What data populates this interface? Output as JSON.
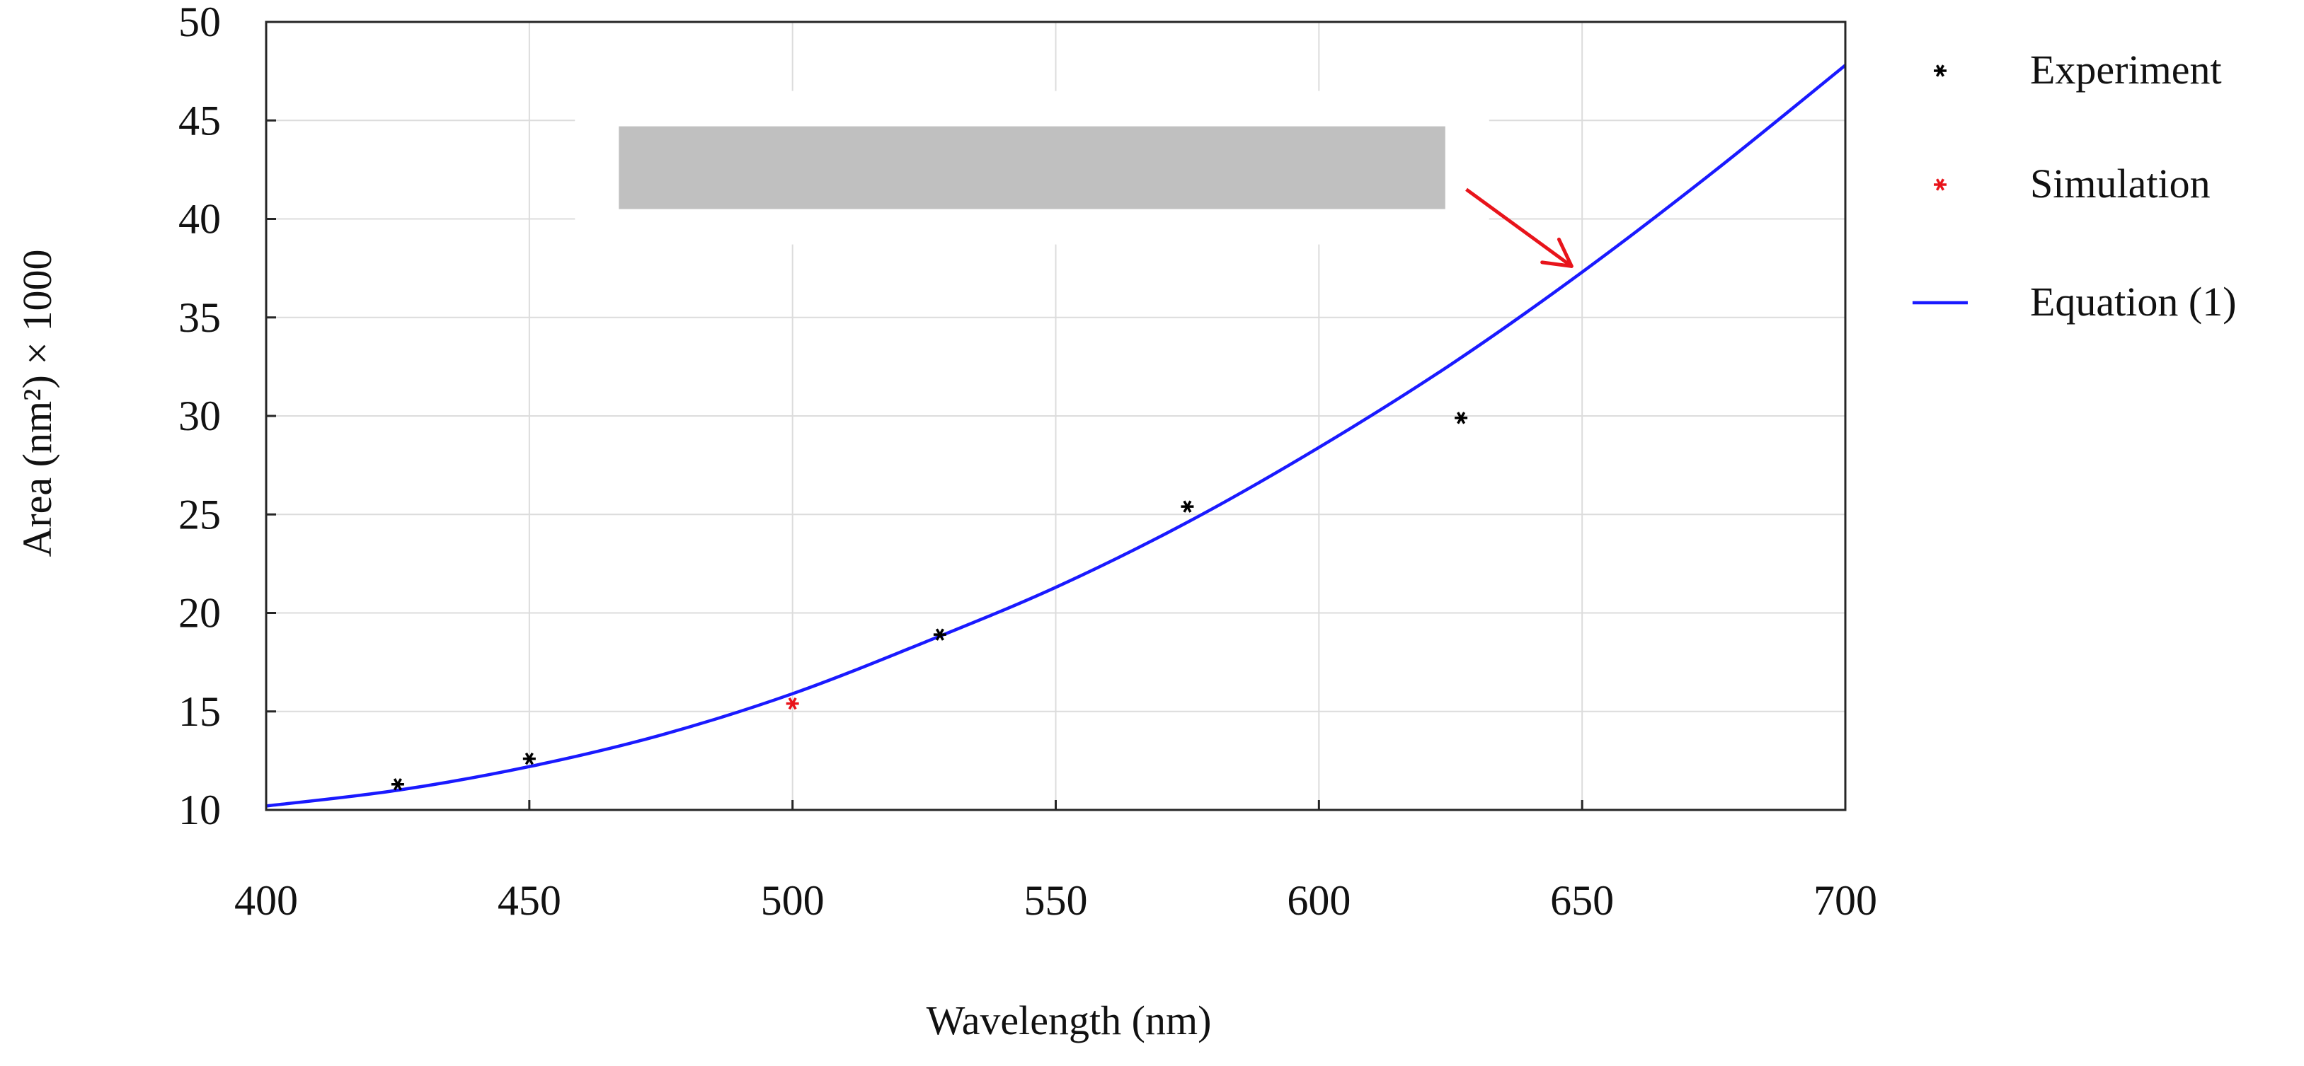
{
  "chart_data": {
    "type": "scatter",
    "title": "",
    "xlabel": "Wavelength (nm)",
    "ylabel": "Area (nm²) × 1000",
    "xlim": [
      400,
      700
    ],
    "ylim": [
      10,
      50
    ],
    "grid": true,
    "x_ticks": [
      400,
      450,
      500,
      550,
      600,
      650,
      700
    ],
    "y_ticks": [
      10,
      15,
      20,
      25,
      30,
      35,
      40,
      45,
      50
    ],
    "series": [
      {
        "name": "Experiment",
        "kind": "markers",
        "marker": "*",
        "color": "#000000",
        "points": [
          {
            "x": 425,
            "y": 11.3
          },
          {
            "x": 450,
            "y": 12.6
          },
          {
            "x": 528,
            "y": 18.9
          },
          {
            "x": 575,
            "y": 25.4
          },
          {
            "x": 627,
            "y": 29.9
          }
        ]
      },
      {
        "name": "Simulation",
        "kind": "markers",
        "marker": "*",
        "color": "#e8141b",
        "points": [
          {
            "x": 500,
            "y": 15.4
          }
        ]
      },
      {
        "name": "Equation (1)",
        "kind": "line",
        "color": "#1a1aff",
        "points": [
          {
            "x": 400,
            "y": 10.2
          },
          {
            "x": 425,
            "y": 11.0
          },
          {
            "x": 450,
            "y": 12.2
          },
          {
            "x": 475,
            "y": 13.8
          },
          {
            "x": 500,
            "y": 15.9
          },
          {
            "x": 525,
            "y": 18.5
          },
          {
            "x": 550,
            "y": 21.3
          },
          {
            "x": 575,
            "y": 24.6
          },
          {
            "x": 600,
            "y": 28.4
          },
          {
            "x": 625,
            "y": 32.6
          },
          {
            "x": 650,
            "y": 37.3
          },
          {
            "x": 675,
            "y": 42.4
          },
          {
            "x": 700,
            "y": 47.8
          }
        ]
      }
    ],
    "legend": {
      "position": "outside-right",
      "entries": [
        "Experiment",
        "Simulation",
        "Equation (1)"
      ]
    },
    "annotations": [
      {
        "type": "redacted-box",
        "color": "#c0c0c0",
        "x_range": [
          467,
          624
        ],
        "y_range": [
          40.5,
          44.7
        ]
      },
      {
        "type": "arrow",
        "color": "#e8141b",
        "from": {
          "x": 628,
          "y": 41.5
        },
        "to": {
          "x": 648,
          "y": 37.6
        }
      }
    ]
  }
}
